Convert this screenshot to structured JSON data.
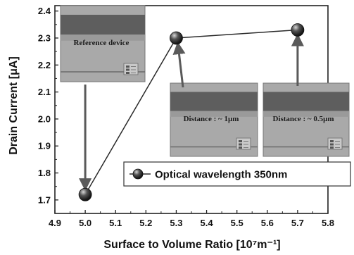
{
  "chart_data": {
    "type": "scatter",
    "x": [
      5.0,
      5.3,
      5.7
    ],
    "series": [
      {
        "name": "Optical wavelength 350nm",
        "values": [
          1.72,
          2.3,
          2.33
        ]
      }
    ],
    "xlabel": "Surface to Volume Ratio [10⁷m⁻¹]",
    "ylabel": "Drain Current [μA]",
    "xlim": [
      4.9,
      5.8
    ],
    "ylim": [
      1.65,
      2.42
    ],
    "xticks": [
      "4.9",
      "5.0",
      "5.1",
      "5.2",
      "5.3",
      "5.4",
      "5.5",
      "5.6",
      "5.7",
      "5.8"
    ],
    "yticks": [
      "1.7",
      "1.8",
      "1.9",
      "2.0",
      "2.1",
      "2.2",
      "2.3",
      "2.4"
    ],
    "grid": false,
    "legend_position": "lower-right",
    "insets": [
      {
        "label": "Reference device",
        "points_to_x": 5.0
      },
      {
        "label": "Distance : ~ 1μm",
        "points_to_x": 5.3
      },
      {
        "label": "Distance : ~ 0.5μm",
        "points_to_x": 5.7
      }
    ],
    "colors": {
      "marker": "#3a3a3a",
      "line": "#2a2a2a",
      "arrow": "#5a5a5a"
    }
  }
}
